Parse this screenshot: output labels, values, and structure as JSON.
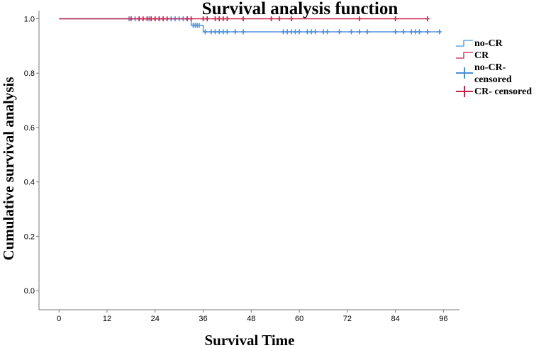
{
  "chart_data": {
    "type": "line",
    "subtype": "kaplan-meier step",
    "title": "Survival analysis function",
    "xlabel": "Survival Time",
    "ylabel": "Cumulative survival analysis",
    "xlim": [
      -5,
      100
    ],
    "ylim": [
      -0.07,
      1.03
    ],
    "xticks": [
      0,
      12,
      24,
      36,
      48,
      60,
      72,
      84,
      96
    ],
    "yticks": [
      0.0,
      0.2,
      0.4,
      0.6,
      0.8,
      1.0
    ],
    "ytick_labels": [
      "0.0",
      "0.2",
      "0.4",
      "0.6",
      "0.8",
      "1.0"
    ],
    "grid": false,
    "legend_position": "right",
    "legend": [
      {
        "label": "no-CR",
        "kind": "step-line",
        "color": "#4a90d9"
      },
      {
        "label": "CR",
        "kind": "step-line",
        "color": "#c8214a"
      },
      {
        "label": "no-CR-",
        "label_line2": "censored",
        "kind": "cross",
        "color": "#4a90d9"
      },
      {
        "label": "CR- censored",
        "kind": "cross",
        "color": "#c8214a"
      }
    ],
    "series": [
      {
        "name": "no-CR",
        "color": "#4a90d9",
        "steps": [
          [
            0,
            1.0
          ],
          [
            33,
            0.976
          ],
          [
            36,
            0.952
          ],
          [
            95,
            0.952
          ]
        ],
        "censored": [
          [
            17.5,
            1.0
          ],
          [
            19,
            1.0
          ],
          [
            20,
            1.0
          ],
          [
            22.5,
            1.0
          ],
          [
            24,
            1.0
          ],
          [
            25,
            1.0
          ],
          [
            28,
            1.0
          ],
          [
            29,
            1.0
          ],
          [
            30,
            1.0
          ],
          [
            31,
            1.0
          ],
          [
            32,
            1.0
          ],
          [
            33.5,
            0.976
          ],
          [
            34,
            0.976
          ],
          [
            34.5,
            0.976
          ],
          [
            35,
            0.976
          ],
          [
            36.5,
            0.952
          ],
          [
            38,
            0.952
          ],
          [
            39,
            0.952
          ],
          [
            40,
            0.952
          ],
          [
            41,
            0.952
          ],
          [
            42,
            0.952
          ],
          [
            44,
            0.952
          ],
          [
            46,
            0.952
          ],
          [
            56,
            0.952
          ],
          [
            57,
            0.952
          ],
          [
            58,
            0.952
          ],
          [
            59,
            0.952
          ],
          [
            60,
            0.952
          ],
          [
            62,
            0.952
          ],
          [
            63,
            0.952
          ],
          [
            64,
            0.952
          ],
          [
            66,
            0.952
          ],
          [
            67,
            0.952
          ],
          [
            70,
            0.952
          ],
          [
            73,
            0.952
          ],
          [
            75,
            0.952
          ],
          [
            77,
            0.952
          ],
          [
            84,
            0.952
          ],
          [
            86,
            0.952
          ],
          [
            88,
            0.952
          ],
          [
            89,
            0.952
          ],
          [
            90,
            0.952
          ],
          [
            92,
            0.952
          ],
          [
            95,
            0.952
          ]
        ]
      },
      {
        "name": "CR",
        "color": "#c8214a",
        "steps": [
          [
            0,
            1.0
          ],
          [
            92,
            1.0
          ]
        ],
        "censored": [
          [
            18,
            1.0
          ],
          [
            20,
            1.0
          ],
          [
            21,
            1.0
          ],
          [
            22,
            1.0
          ],
          [
            23,
            1.0
          ],
          [
            24,
            1.0
          ],
          [
            25,
            1.0
          ],
          [
            26,
            1.0
          ],
          [
            27,
            1.0
          ],
          [
            32,
            1.0
          ],
          [
            33,
            1.0
          ],
          [
            36,
            1.0
          ],
          [
            37,
            1.0
          ],
          [
            39,
            1.0
          ],
          [
            40,
            1.0
          ],
          [
            41,
            1.0
          ],
          [
            42,
            1.0
          ],
          [
            46,
            1.0
          ],
          [
            53,
            1.0
          ],
          [
            55,
            1.0
          ],
          [
            58,
            1.0
          ],
          [
            75,
            1.0
          ],
          [
            84,
            1.0
          ],
          [
            92,
            1.0
          ]
        ]
      }
    ]
  }
}
